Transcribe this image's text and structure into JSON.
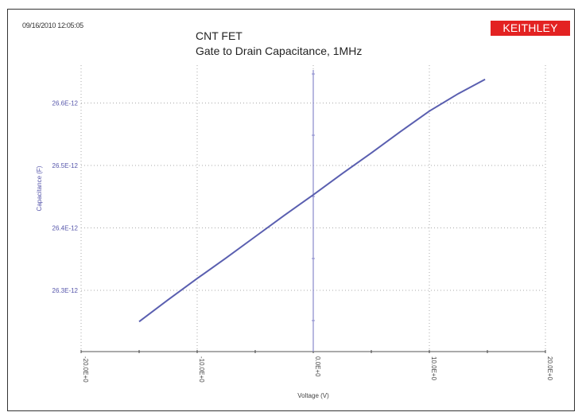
{
  "header": {
    "timestamp": "09/16/2010 12:05:05",
    "title_line1": "CNT FET",
    "title_line2": "Gate to Drain Capacitance, 1MHz",
    "brand": "KEITHLEY"
  },
  "colors": {
    "curve": "#5a5fb0",
    "axis_labels": "#5555aa",
    "brand_bg": "#e32222",
    "grid": "#aaaaaa"
  },
  "chart_data": {
    "type": "line",
    "title": "CNT FET — Gate to Drain Capacitance, 1MHz",
    "xlabel": "Voltage (V)",
    "ylabel": "Capacitance (F)",
    "xlim": [
      -20,
      20
    ],
    "ylim": [
      2.62e-11,
      2.667e-11
    ],
    "x_ticks": [
      "-20.0E+0",
      "-10.0E+0",
      "0.0E+0",
      "10.0E+0",
      "20.0E+0"
    ],
    "y_ticks": [
      "26.3E-12",
      "26.4E-12",
      "26.5E-12",
      "26.6E-12"
    ],
    "grid": true,
    "legend": null,
    "vertical_marker_at_x": 0,
    "series": [
      {
        "name": "Capacitance",
        "x": [
          -15,
          -12.5,
          -10,
          -7.5,
          -5,
          -2.5,
          0,
          2.5,
          5,
          7.5,
          10,
          12.5,
          14.8
        ],
        "y": [
          2.625e-11,
          2.6285e-11,
          2.6319e-11,
          2.6352e-11,
          2.6386e-11,
          2.642e-11,
          2.6453e-11,
          2.6487e-11,
          2.652e-11,
          2.6554e-11,
          2.6587e-11,
          2.6615e-11,
          2.6638e-11
        ]
      }
    ]
  }
}
